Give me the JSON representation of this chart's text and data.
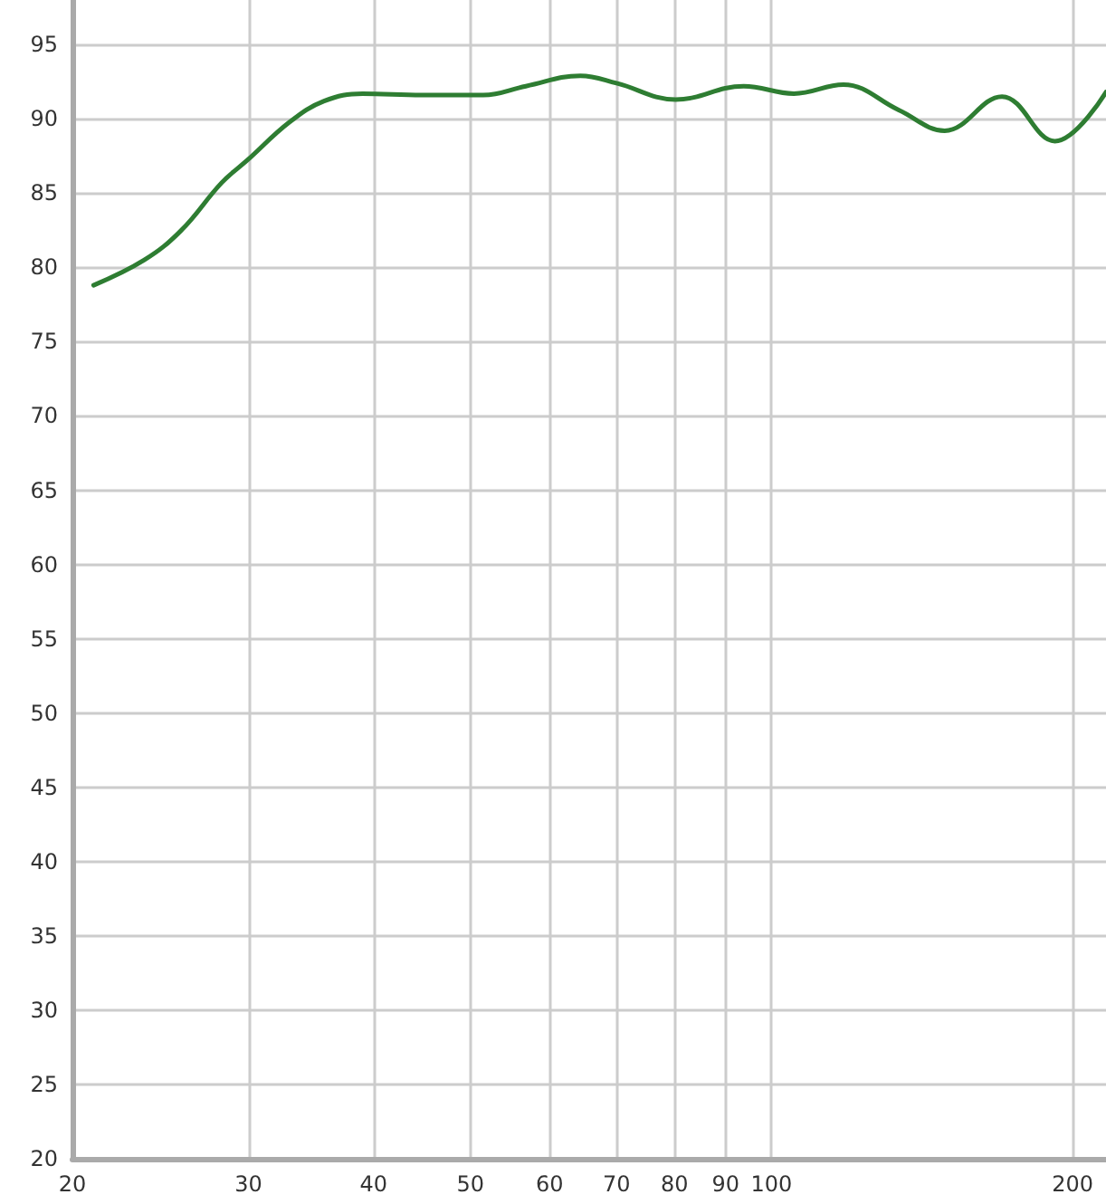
{
  "chart_data": {
    "type": "line",
    "log": "x",
    "grid": true,
    "marker": "none",
    "line_style": "solid",
    "xlim": [
      20,
      216
    ],
    "xticks": [
      20,
      30,
      40,
      50,
      60,
      70,
      80,
      90,
      100,
      200
    ],
    "ylim": [
      20,
      98
    ],
    "yticks": [
      20,
      25,
      30,
      35,
      40,
      45,
      50,
      55,
      60,
      65,
      70,
      75,
      80,
      85,
      90,
      95
    ],
    "series": [
      {
        "color": "#2e7d32",
        "x": [
          21,
          23.6,
          25.7,
          28.2,
          29.9,
          33,
          35.7,
          39,
          44.7,
          51.5,
          56.8,
          64.4,
          70,
          80.2,
          93.8,
          105.3,
          118,
          134,
          149,
          170,
          192,
          216
        ],
        "values": [
          78.8,
          80.5,
          82.5,
          85.7,
          87.2,
          89.8,
          91.2,
          91.7,
          91.6,
          91.6,
          92.2,
          92.9,
          92.4,
          91.3,
          92.2,
          91.7,
          92.3,
          90.6,
          89.2,
          91.5,
          88.5,
          91.8
        ]
      }
    ]
  }
}
